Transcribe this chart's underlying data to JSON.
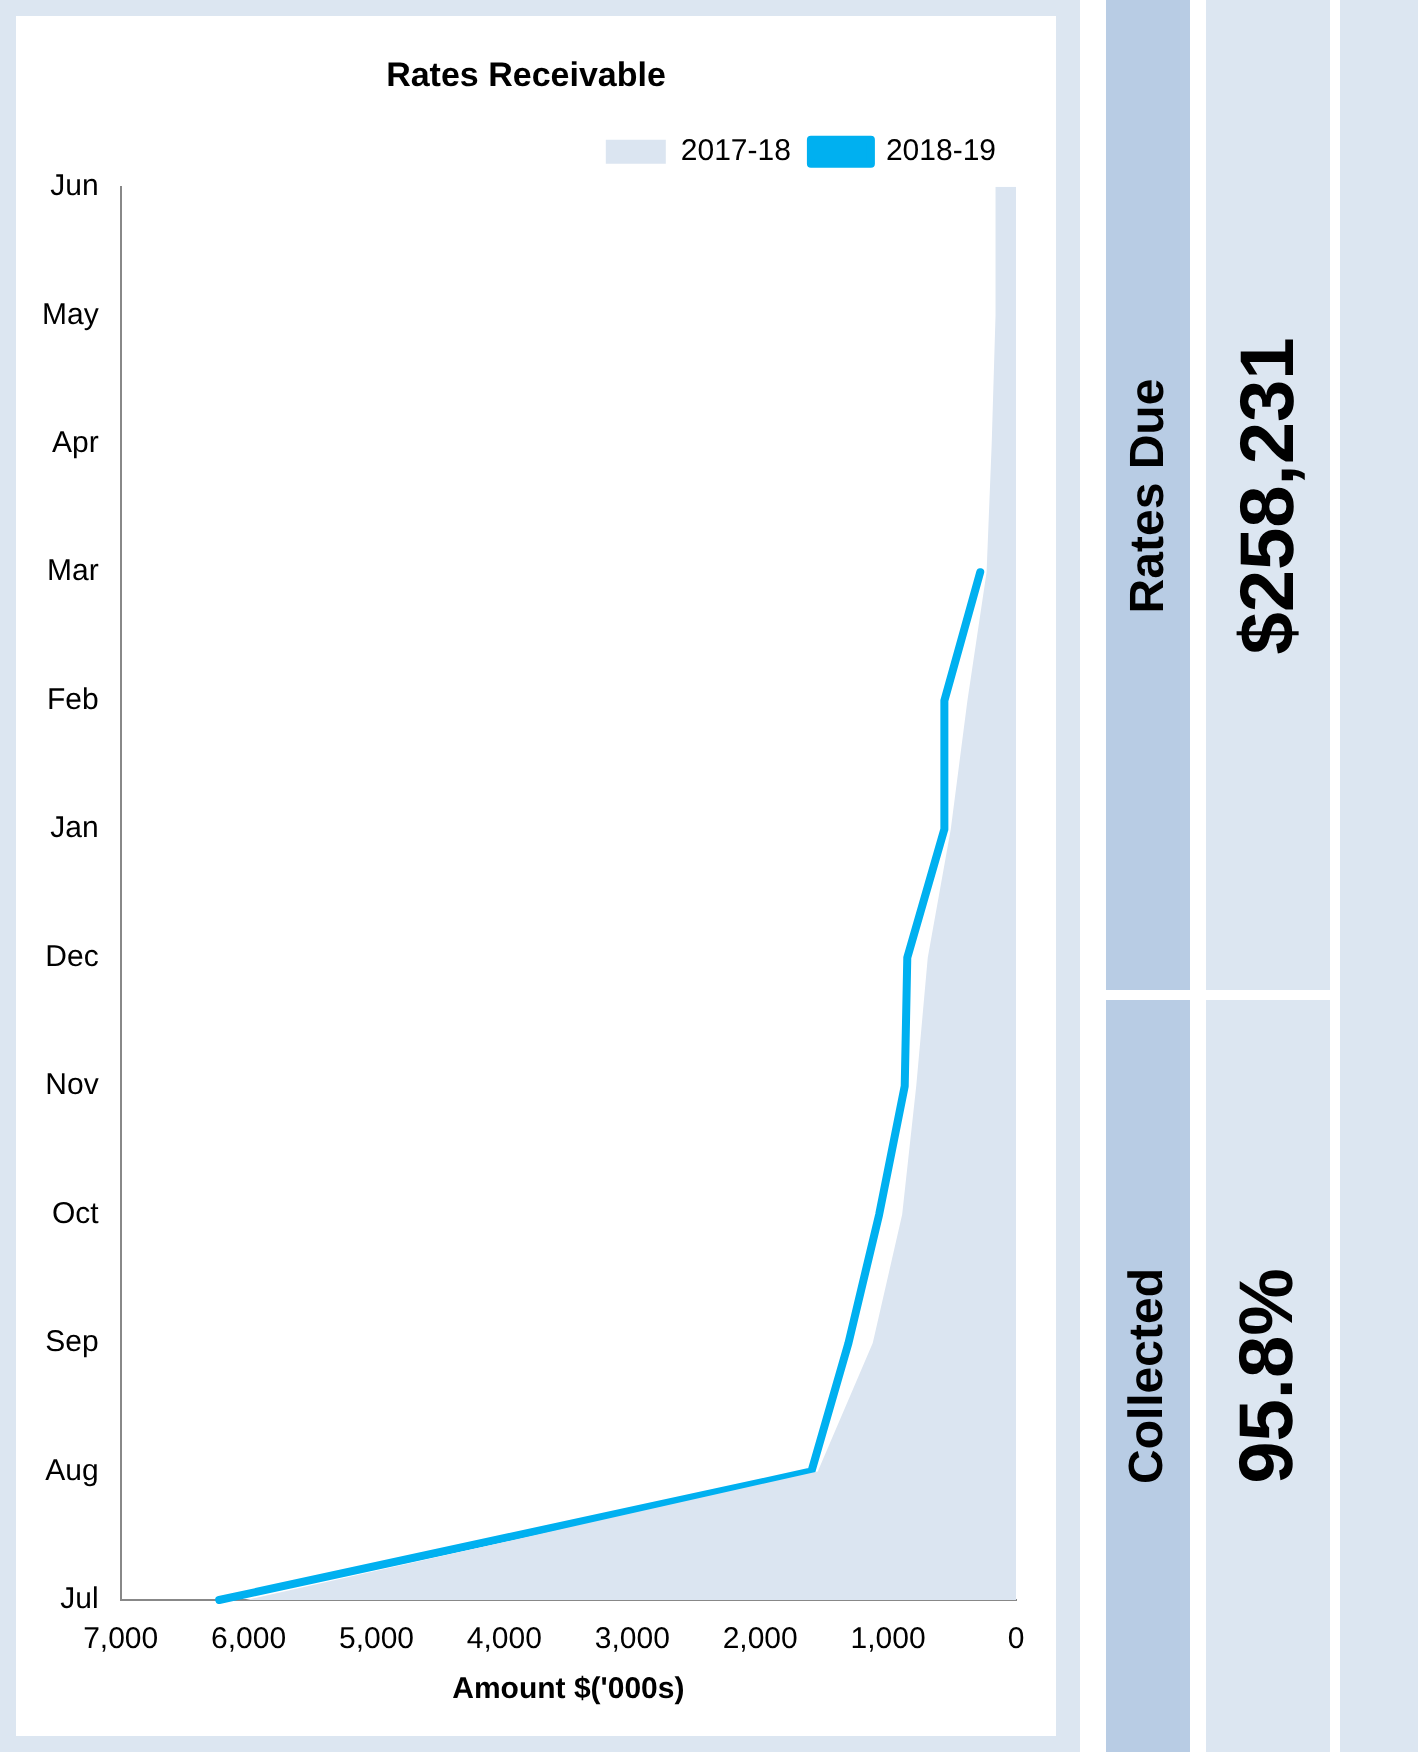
{
  "chart_data": {
    "type": "line",
    "title": "Rates Receivable",
    "xlabel": "Amount $('000s)",
    "orientation": "horizontal",
    "categories": [
      "Jun",
      "May",
      "Apr",
      "Mar",
      "Feb",
      "Jan",
      "Dec",
      "Nov",
      "Oct",
      "Sep",
      "Aug",
      "Jul"
    ],
    "series": [
      {
        "name": "2017-18",
        "type": "area",
        "color": "#dbe5f1",
        "values": [
          160,
          160,
          190,
          230,
          380,
          510,
          690,
          780,
          890,
          1120,
          1550,
          6020
        ]
      },
      {
        "name": "2018-19",
        "type": "line",
        "color": "#00b0f0",
        "values": [
          null,
          null,
          null,
          280,
          560,
          560,
          850,
          870,
          1070,
          1310,
          1600,
          6230
        ]
      }
    ],
    "xlim": [
      7000,
      0
    ],
    "xticks": [
      0,
      {
        "value": 1000,
        "label": "1,000"
      },
      {
        "value": 2000,
        "label": "2,000"
      },
      {
        "value": 3000,
        "label": "3,000"
      },
      {
        "value": 4000,
        "label": "4,000"
      },
      {
        "value": 5000,
        "label": "5,000"
      },
      {
        "value": 6000,
        "label": "6,000"
      },
      {
        "value": 7000,
        "label": "7,000"
      }
    ],
    "grid": false,
    "legend": "top right",
    "marker": "none",
    "annotations": [
      "Collected",
      "95.8%",
      "Rates Due",
      "$258,231"
    ]
  }
}
